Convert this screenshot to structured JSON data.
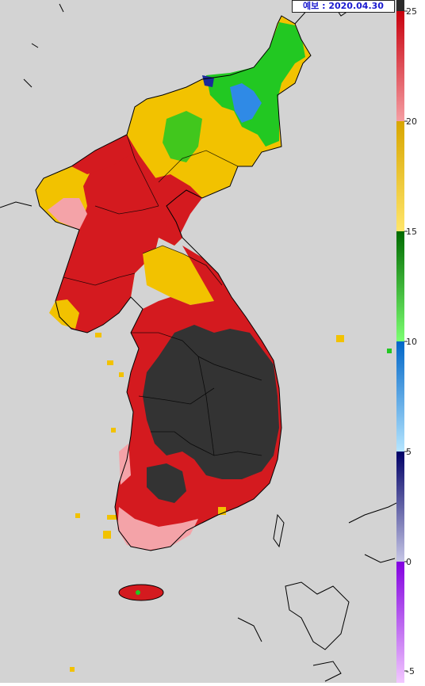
{
  "header": {
    "forecast_label": "예보 : 2020.04.30"
  },
  "legend": {
    "ticks": [
      "25",
      "20",
      "15",
      "10",
      "5",
      "0",
      "-5"
    ],
    "bands": [
      {
        "from": "#2b2b2b",
        "to": "#2b2b2b"
      },
      {
        "from": "#c8000d",
        "to": "#f59ea3"
      },
      {
        "from": "#d8a600",
        "to": "#ffe56a"
      },
      {
        "from": "#006a00",
        "to": "#7cff72"
      },
      {
        "from": "#0066c8",
        "to": "#b6e6ff"
      },
      {
        "from": "#000066",
        "to": "#c6c6e6"
      },
      {
        "from": "#8200e0",
        "to": "#f2c8ff"
      }
    ]
  },
  "map": {
    "background": "#d3d3d3",
    "colors": {
      "above25": "#333333",
      "red": "#d41a1f",
      "pink": "#f4a3a8",
      "yellow": "#f2c200",
      "green": "#22c822",
      "blue": "#2f8ae6",
      "darkblue": "#1a2a9a",
      "coast": "#000000"
    }
  }
}
